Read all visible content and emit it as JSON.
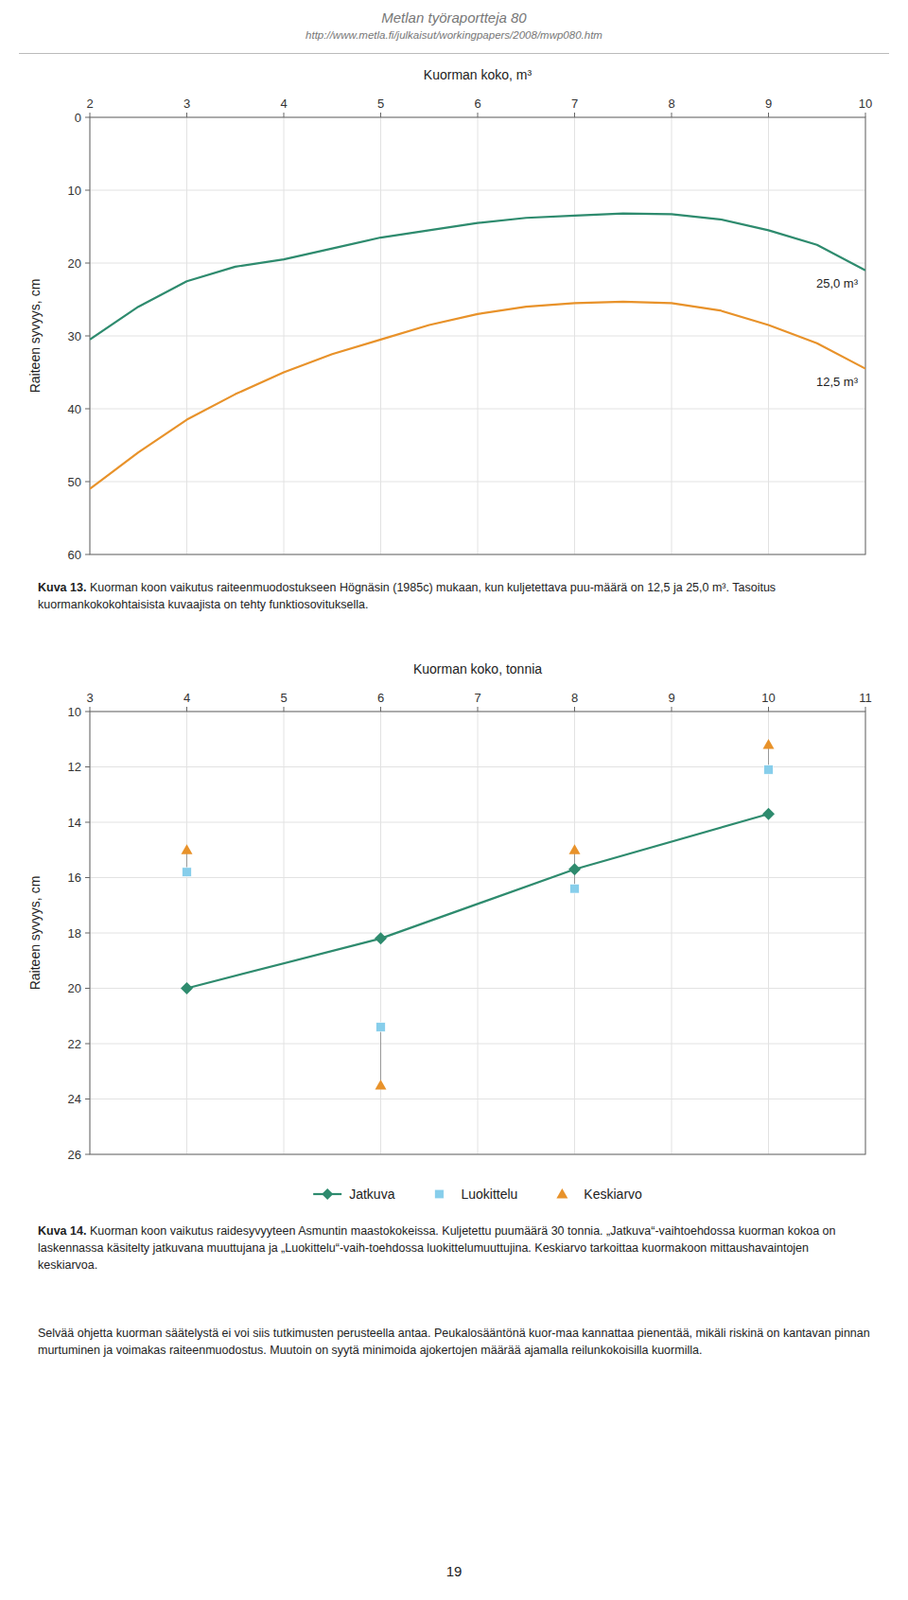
{
  "title": "Metlan työraportteja 80",
  "subtitle": "http://www.metla.fi/julkaisut/workingpapers/2008/mwp080.htm",
  "annotations": [
    "Selvää ohjetta kuorman säätelystä ei voi siis tutkimusten perusteella antaa. Peukalosääntönä kuor-maa kannattaa pienentää, mikäli riskinä on kantavan pinnan murtuminen ja voimakas raiteenmuodostus. Muutoin on syytä minimoida ajokertojen määrää ajamalla reilunkokoisilla kuormilla.",
    "19"
  ],
  "chart_data": [
    {
      "type": "line",
      "xlabel": "Kuorman koko, m³",
      "ylabel": "Raiteen syvyys, cm",
      "annotations": [
        "Kuva 13.",
        " Kuorman koon vaikutus raiteenmuodostukseen Högnäsin (1985c) mukaan, kun kuljetettava puu-määrä on 12,5 ja 25,0 m³. Tasoitus kuormankokokohtaisista kuvaajista on tehty funktiosovituksella."
      ],
      "x": [
        2.0,
        2.5,
        3.0,
        3.5,
        4.0,
        4.5,
        5.0,
        5.5,
        6.0,
        6.5,
        7.0,
        7.5,
        8.0,
        8.5,
        9.0,
        9.5,
        10.0
      ],
      "xlim": [
        2,
        10
      ],
      "ylim": [
        60,
        0
      ],
      "xticks": [
        2,
        3,
        4,
        5,
        6,
        7,
        8,
        9,
        10
      ],
      "yticks": [
        0,
        10,
        20,
        30,
        40,
        50,
        60
      ],
      "grid": true,
      "series": [
        {
          "name": "25,0 m³",
          "color": "#2e8b6e",
          "values": [
            30.5,
            26.0,
            22.5,
            20.5,
            19.5,
            18.0,
            16.5,
            15.5,
            14.5,
            13.8,
            13.5,
            13.2,
            13.3,
            14.0,
            15.5,
            17.5,
            21.0
          ]
        },
        {
          "name": "12,5 m³",
          "color": "#e8922a",
          "values": [
            51.0,
            46.0,
            41.5,
            38.0,
            35.0,
            32.5,
            30.5,
            28.5,
            27.0,
            26.0,
            25.5,
            25.3,
            25.5,
            26.5,
            28.5,
            31.0,
            34.5
          ]
        }
      ]
    },
    {
      "type": "line",
      "xlabel": "Kuorman koko, tonnia",
      "ylabel": "Raiteen syvyys, cm",
      "annotations": [
        "Kuva 14.",
        " Kuorman koon vaikutus raidesyvyyteen Asmuntin maastokokeissa. Kuljetettu puumäärä 30 tonnia. „Jatkuva“-vaihtoehdossa kuorman kokoa on laskennassa käsitelty jatkuvana muuttujana ja „Luokittelu“-vaih-toehdossa luokittelumuuttujina. Keskiarvo tarkoittaa kuormakoon mittaushavaintojen keskiarvoa."
      ],
      "x": [
        4,
        6,
        8,
        10
      ],
      "xlim": [
        3,
        11
      ],
      "ylim": [
        26,
        10
      ],
      "xticks": [
        3,
        4,
        5,
        6,
        7,
        8,
        9,
        10,
        11
      ],
      "yticks": [
        10,
        12,
        14,
        16,
        18,
        20,
        22,
        24,
        26
      ],
      "grid": true,
      "legend": "bottom",
      "series": [
        {
          "name": "Jatkuva",
          "type": "line",
          "marker": "diamond",
          "color": "#2e8b6e",
          "values": [
            20.0,
            18.2,
            15.7,
            13.7
          ]
        },
        {
          "name": "Luokittelu",
          "type": "scatter",
          "marker": "square",
          "color": "#87ceeb",
          "values": [
            15.8,
            21.4,
            16.4,
            12.1
          ]
        },
        {
          "name": "Keskiarvo",
          "type": "scatter",
          "marker": "triangle",
          "color": "#e8922a",
          "values": [
            15.0,
            23.5,
            15.0,
            11.2
          ]
        }
      ]
    }
  ]
}
